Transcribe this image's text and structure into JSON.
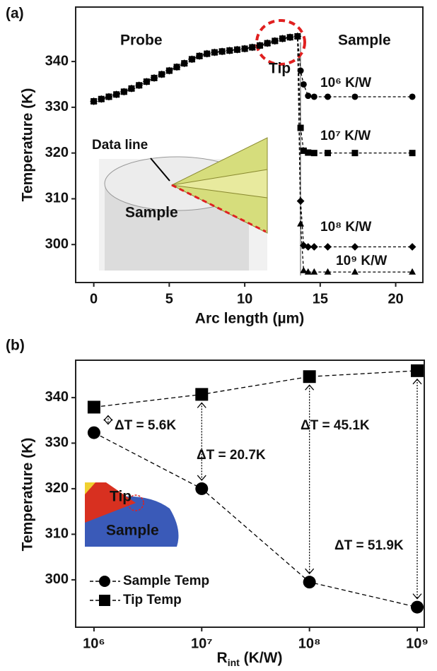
{
  "chart_data": [
    {
      "type": "line",
      "panel": "(a)",
      "xlabel": "Arc length (µm)",
      "ylabel": "Temperature (K)",
      "x": [
        0,
        0.5,
        1,
        1.5,
        2,
        2.5,
        3,
        3.5,
        4,
        4.5,
        5,
        5.5,
        6,
        6.5,
        7,
        7.5,
        8,
        8.5,
        9,
        9.5,
        10,
        10.5,
        11,
        11.5,
        12,
        12.5,
        13,
        13.5,
        13.7,
        13.9,
        14.2,
        14.6,
        15.5,
        17.3,
        21.1
      ],
      "xlim": [
        -1.2,
        21.8
      ],
      "ylim": [
        291.7,
        351.9
      ],
      "xticks": [
        0,
        5,
        10,
        15,
        20
      ],
      "yticks": [
        300,
        310,
        320,
        330,
        340
      ],
      "series": [
        {
          "name": "10⁶ K/W",
          "color": "#000000",
          "marker": "circle",
          "values": [
            331.3,
            331.8,
            332.3,
            332.8,
            333.4,
            334.1,
            334.8,
            335.6,
            336.4,
            337.2,
            338,
            338.8,
            339.6,
            340.5,
            341.2,
            341.7,
            342,
            342.2,
            342.4,
            342.6,
            342.8,
            343.1,
            343.5,
            344,
            344.5,
            345,
            345.3,
            345.5,
            338,
            335,
            332.5,
            332.3,
            332.3,
            332.3,
            332.3
          ]
        },
        {
          "name": "10⁷ K/W",
          "color": "#000000",
          "marker": "square",
          "values": [
            331.3,
            331.8,
            332.3,
            332.8,
            333.4,
            334.1,
            334.8,
            335.6,
            336.4,
            337.2,
            338,
            338.8,
            339.6,
            340.5,
            341.2,
            341.7,
            342,
            342.2,
            342.4,
            342.6,
            342.8,
            343.1,
            343.5,
            344,
            344.5,
            345,
            345.3,
            345.5,
            325.5,
            320.5,
            320.1,
            320,
            320,
            320,
            320
          ]
        },
        {
          "name": "10⁸ K/W",
          "color": "#000000",
          "marker": "diamond",
          "values": [
            331.3,
            331.8,
            332.3,
            332.8,
            333.4,
            334.1,
            334.8,
            335.6,
            336.4,
            337.2,
            338,
            338.8,
            339.6,
            340.5,
            341.2,
            341.7,
            342,
            342.2,
            342.4,
            342.6,
            342.8,
            343.1,
            343.5,
            344,
            344.5,
            345,
            345.3,
            345.5,
            309.5,
            299.8,
            299.5,
            299.5,
            299.5,
            299.5,
            299.5
          ]
        },
        {
          "name": "10⁹ K/W",
          "color": "#000000",
          "marker": "triangle",
          "values": [
            331.3,
            331.8,
            332.3,
            332.8,
            333.4,
            334.1,
            334.8,
            335.6,
            336.4,
            337.2,
            338,
            338.8,
            339.6,
            340.5,
            341.2,
            341.7,
            342,
            342.2,
            342.4,
            342.6,
            342.8,
            343.1,
            343.5,
            344,
            344.5,
            345,
            345.3,
            345.5,
            304.5,
            294.3,
            294,
            294,
            294,
            294,
            294
          ]
        }
      ],
      "annotations": [
        "Probe",
        "Sample",
        "Tip"
      ],
      "inset_labels": [
        "Data line",
        "Sample"
      ]
    },
    {
      "type": "line",
      "panel": "(b)",
      "xlabel": [
        "R",
        "int",
        " (K/W)"
      ],
      "ylabel": "Temperature (K)",
      "xscale": "log",
      "x": [
        1000000,
        10000000,
        100000000,
        1000000000
      ],
      "xlim": [
        676000,
        1163000000
      ],
      "ylim": [
        289.6,
        348.2
      ],
      "xticks": [
        {
          "value": 1000000,
          "label": "10⁶"
        },
        {
          "value": 10000000,
          "label": "10⁷"
        },
        {
          "value": 100000000,
          "label": "10⁸"
        },
        {
          "value": 1000000000,
          "label": "10⁹"
        }
      ],
      "yticks": [
        300,
        310,
        320,
        330,
        340
      ],
      "series": [
        {
          "name": "Sample Temp",
          "color": "#000000",
          "marker": "circle",
          "values": [
            332.3,
            320,
            299.5,
            294
          ]
        },
        {
          "name": "Tip Temp",
          "color": "#000000",
          "marker": "square",
          "values": [
            337.9,
            340.7,
            344.6,
            345.9
          ]
        }
      ],
      "annotations": [
        "ΔT = 5.6K",
        "ΔT = 20.7K",
        "ΔT = 45.1K",
        "ΔT = 51.9K"
      ],
      "inset_labels": [
        "Tip",
        "Sample"
      ]
    }
  ]
}
